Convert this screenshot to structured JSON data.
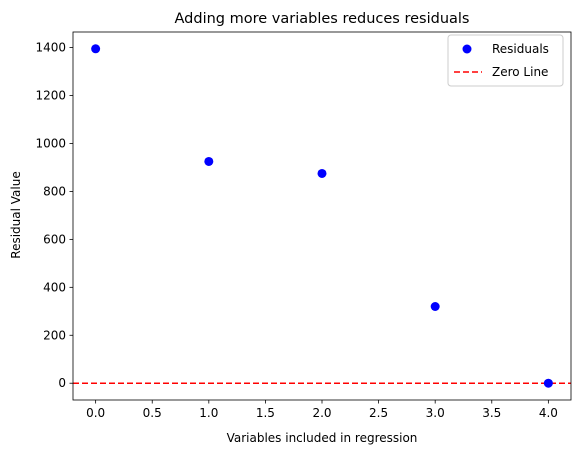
{
  "chart_data": {
    "type": "scatter",
    "title": "Adding more variables reduces residuals",
    "xlabel": "Variables included in regression",
    "ylabel": "Residual Value",
    "xlim": [
      -0.2,
      4.2
    ],
    "ylim": [
      -70,
      1465
    ],
    "xticks": [
      0.0,
      0.5,
      1.0,
      1.5,
      2.0,
      2.5,
      3.0,
      3.5,
      4.0
    ],
    "xtick_labels": [
      "0.0",
      "0.5",
      "1.0",
      "1.5",
      "2.0",
      "2.5",
      "3.0",
      "3.5",
      "4.0"
    ],
    "yticks": [
      0,
      200,
      400,
      600,
      800,
      1000,
      1200,
      1400
    ],
    "ytick_labels": [
      "0",
      "200",
      "400",
      "600",
      "800",
      "1000",
      "1200",
      "1400"
    ],
    "grid": false,
    "legend_position": "top-right",
    "series": [
      {
        "name": "Residuals",
        "kind": "scatter",
        "color": "#0000ff",
        "x": [
          0,
          1,
          2,
          3,
          4
        ],
        "y": [
          1395,
          925,
          875,
          320,
          0
        ]
      },
      {
        "name": "Zero Line",
        "kind": "hline",
        "color": "#ff0000",
        "linestyle": "dashed",
        "y": 0
      }
    ]
  }
}
